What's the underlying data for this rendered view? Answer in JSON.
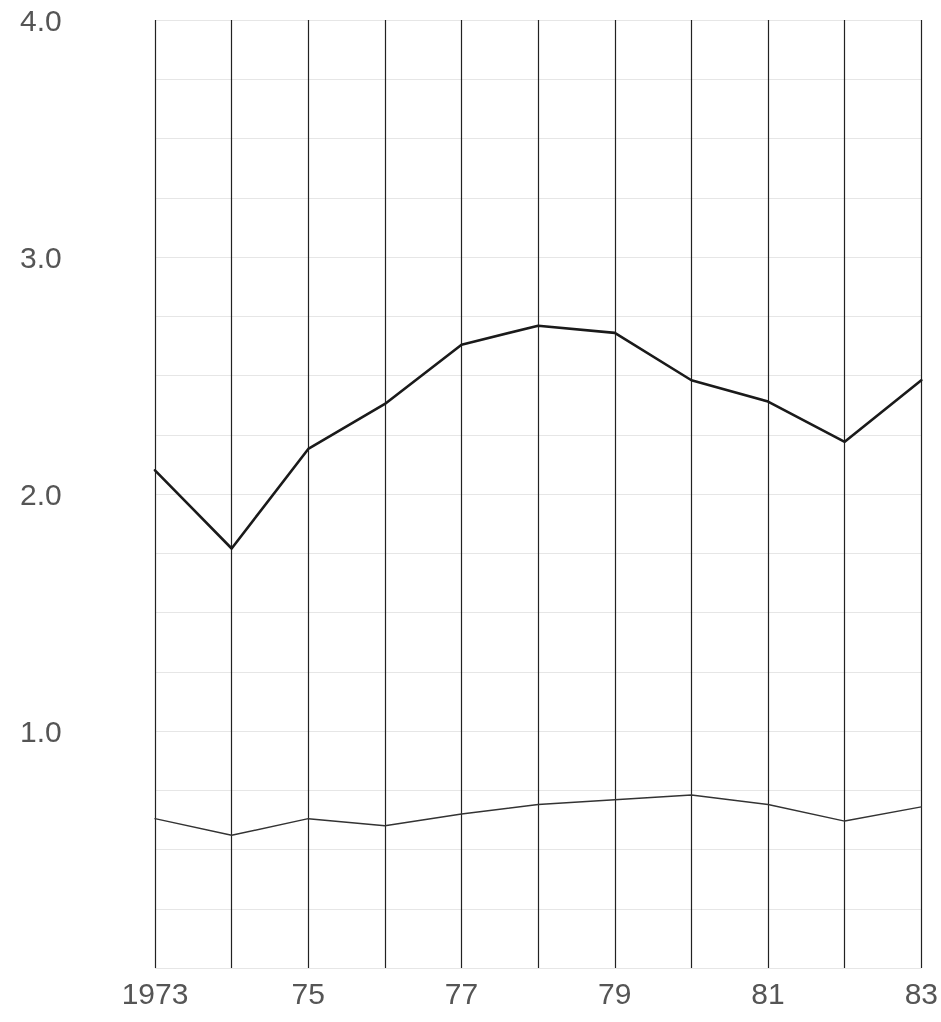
{
  "chart_data": {
    "type": "line",
    "x": [
      1973,
      1974,
      1975,
      1976,
      1977,
      1978,
      1979,
      1980,
      1981,
      1982,
      1983
    ],
    "series": [
      {
        "color": "#1a1a1a",
        "values": [
          2.1,
          1.77,
          2.19,
          2.38,
          2.63,
          2.71,
          2.68,
          2.48,
          2.39,
          2.22,
          2.48
        ]
      },
      {
        "color": "#333333",
        "values": [
          0.63,
          0.56,
          0.63,
          0.6,
          0.65,
          0.69,
          0.71,
          0.73,
          0.69,
          0.62,
          0.68
        ]
      }
    ],
    "xlim": [
      1973,
      1983
    ],
    "xticks": [
      {
        "value": 1973,
        "label": "1973"
      },
      {
        "value": 1974,
        "label": null
      },
      {
        "value": 1975,
        "label": "75"
      },
      {
        "value": 1976,
        "label": null
      },
      {
        "value": 1977,
        "label": "77"
      },
      {
        "value": 1978,
        "label": null
      },
      {
        "value": 1979,
        "label": "79"
      },
      {
        "value": 1980,
        "label": null
      },
      {
        "value": 1981,
        "label": "81"
      },
      {
        "value": 1982,
        "label": null
      },
      {
        "value": 1983,
        "label": "83"
      }
    ],
    "ylim": [
      0,
      4
    ],
    "yticks": [
      {
        "value": 0.25,
        "label": null
      },
      {
        "value": 0.5,
        "label": null
      },
      {
        "value": 0.75,
        "label": null
      },
      {
        "value": 1,
        "label": "1.0"
      },
      {
        "value": 1.25,
        "label": null
      },
      {
        "value": 1.5,
        "label": null
      },
      {
        "value": 1.75,
        "label": null
      },
      {
        "value": 2,
        "label": "2.0"
      },
      {
        "value": 2.25,
        "label": null
      },
      {
        "value": 2.5,
        "label": null
      },
      {
        "value": 2.75,
        "label": null
      },
      {
        "value": 3,
        "label": "3.0"
      },
      {
        "value": 3.25,
        "label": null
      },
      {
        "value": 3.5,
        "label": null
      },
      {
        "value": 3.75,
        "label": null
      },
      {
        "value": 4,
        "label": "4.0"
      }
    ],
    "grid": true,
    "marker": "none",
    "line_style": "solid"
  }
}
